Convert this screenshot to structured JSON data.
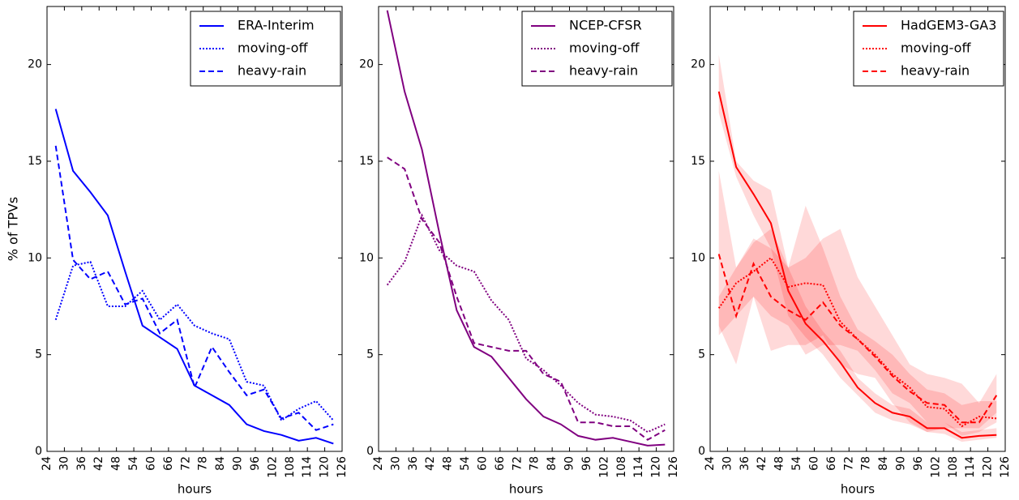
{
  "chart_data": [
    {
      "type": "line",
      "xlabel": "hours",
      "ylabel": "% of TPVs",
      "x": [
        27,
        33,
        39,
        45,
        51,
        57,
        63,
        69,
        75,
        81,
        87,
        93,
        99,
        105,
        111,
        117,
        123
      ],
      "xlim": [
        24,
        126
      ],
      "ylim": [
        0,
        23
      ],
      "xticks": [
        24,
        30,
        36,
        42,
        48,
        54,
        60,
        66,
        72,
        78,
        84,
        90,
        96,
        102,
        108,
        114,
        120,
        126
      ],
      "yticks": [
        0,
        5,
        10,
        15,
        20
      ],
      "legend": "upper right",
      "series": [
        {
          "name": "ERA-Interim",
          "color": "#0000ff",
          "style": "solid",
          "values": [
            17.7,
            14.5,
            13.4,
            12.2,
            9.3,
            6.5,
            5.9,
            5.3,
            3.4,
            2.9,
            2.4,
            1.4,
            1.05,
            0.85,
            0.55,
            0.7,
            0.4
          ]
        },
        {
          "name": "moving-off",
          "color": "#0000ff",
          "style": "dotted",
          "values": [
            6.8,
            9.6,
            9.8,
            7.5,
            7.5,
            8.3,
            6.8,
            7.6,
            6.5,
            6.1,
            5.8,
            3.6,
            3.4,
            1.6,
            2.2,
            2.6,
            1.6
          ]
        },
        {
          "name": "heavy-rain",
          "color": "#0000ff",
          "style": "dashed",
          "values": [
            15.8,
            9.9,
            8.9,
            9.3,
            7.6,
            7.9,
            6.1,
            6.8,
            3.3,
            5.4,
            4.1,
            2.9,
            3.2,
            1.7,
            2.0,
            1.1,
            1.4
          ]
        }
      ]
    },
    {
      "type": "line",
      "xlabel": "hours",
      "x": [
        27,
        33,
        39,
        45,
        51,
        57,
        63,
        69,
        75,
        81,
        87,
        93,
        99,
        105,
        111,
        117,
        123
      ],
      "xlim": [
        24,
        126
      ],
      "ylim": [
        0,
        23
      ],
      "xticks": [
        24,
        30,
        36,
        42,
        48,
        54,
        60,
        66,
        72,
        78,
        84,
        90,
        96,
        102,
        108,
        114,
        120,
        126
      ],
      "yticks": [
        0,
        5,
        10,
        15,
        20
      ],
      "legend": "upper right",
      "series": [
        {
          "name": "NCEP-CFSR",
          "color": "#800080",
          "style": "solid",
          "values": [
            22.8,
            18.6,
            15.6,
            11.3,
            7.3,
            5.4,
            4.9,
            3.8,
            2.7,
            1.8,
            1.4,
            0.8,
            0.6,
            0.7,
            0.5,
            0.3,
            0.35
          ]
        },
        {
          "name": "moving-off",
          "color": "#800080",
          "style": "dotted",
          "values": [
            8.6,
            9.8,
            12.2,
            10.4,
            9.6,
            9.3,
            7.8,
            6.8,
            4.8,
            4.2,
            3.4,
            2.5,
            1.9,
            1.8,
            1.6,
            1.0,
            1.4
          ]
        },
        {
          "name": "heavy-rain",
          "color": "#800080",
          "style": "dashed",
          "values": [
            15.2,
            14.6,
            12.0,
            10.8,
            8.0,
            5.6,
            5.4,
            5.2,
            5.2,
            4.0,
            3.6,
            1.5,
            1.5,
            1.3,
            1.3,
            0.6,
            1.1
          ]
        }
      ]
    },
    {
      "type": "line",
      "xlabel": "hours",
      "x": [
        27,
        33,
        39,
        45,
        51,
        57,
        63,
        69,
        75,
        81,
        87,
        93,
        99,
        105,
        111,
        117,
        123
      ],
      "xlim": [
        24,
        126
      ],
      "ylim": [
        0,
        23
      ],
      "xticks": [
        24,
        30,
        36,
        42,
        48,
        54,
        60,
        66,
        72,
        78,
        84,
        90,
        96,
        102,
        108,
        114,
        120,
        126
      ],
      "yticks": [
        0,
        5,
        10,
        15,
        20
      ],
      "legend": "upper right",
      "series": [
        {
          "name": "HadGEM3-GA3",
          "color": "#ff0000",
          "style": "solid",
          "values": [
            18.6,
            14.7,
            13.3,
            11.8,
            8.3,
            6.6,
            5.7,
            4.6,
            3.3,
            2.5,
            2.0,
            1.8,
            1.2,
            1.2,
            0.7,
            0.8,
            0.85
          ],
          "lower": [
            17.5,
            14.2,
            12.2,
            10.5,
            7.0,
            5.9,
            5.0,
            3.8,
            2.9,
            2.0,
            1.6,
            1.4,
            1.0,
            0.9,
            0.5,
            0.6,
            0.7
          ],
          "upper": [
            20.5,
            15.0,
            14.0,
            13.5,
            9.5,
            7.5,
            6.2,
            5.2,
            3.8,
            3.0,
            2.4,
            2.2,
            1.5,
            1.5,
            1.0,
            1.1,
            1.2
          ]
        },
        {
          "name": "moving-off",
          "color": "#ff0000",
          "style": "dotted",
          "values": [
            7.4,
            8.7,
            9.3,
            10.0,
            8.5,
            8.7,
            8.6,
            6.7,
            5.8,
            5.0,
            4.0,
            3.3,
            2.3,
            2.2,
            1.3,
            1.8,
            1.7
          ],
          "lower": [
            6.0,
            7.0,
            8.0,
            7.0,
            6.5,
            5.0,
            5.5,
            5.5,
            5.2,
            4.2,
            3.0,
            2.5,
            1.5,
            1.5,
            0.8,
            1.0,
            1.5
          ],
          "upper": [
            8.0,
            9.5,
            10.8,
            11.5,
            9.5,
            12.7,
            10.5,
            8.0,
            6.3,
            5.7,
            5.0,
            4.0,
            3.2,
            3.0,
            2.4,
            2.6,
            2.6
          ]
        },
        {
          "name": "heavy-rain",
          "color": "#ff0000",
          "style": "dashed",
          "values": [
            10.2,
            7.0,
            9.7,
            8.0,
            7.3,
            6.8,
            7.7,
            6.5,
            5.8,
            4.9,
            3.9,
            3.1,
            2.5,
            2.4,
            1.5,
            1.5,
            2.9
          ],
          "lower": [
            6.5,
            4.5,
            8.0,
            5.2,
            5.5,
            5.5,
            6.0,
            4.5,
            4.0,
            3.8,
            2.5,
            1.5,
            1.0,
            1.2,
            1.2,
            1.2,
            2.0
          ],
          "upper": [
            14.5,
            9.5,
            11.0,
            10.5,
            9.5,
            10.0,
            11.0,
            11.5,
            9.0,
            7.5,
            6.0,
            4.5,
            4.0,
            3.8,
            3.5,
            2.5,
            4.0
          ]
        }
      ]
    }
  ]
}
